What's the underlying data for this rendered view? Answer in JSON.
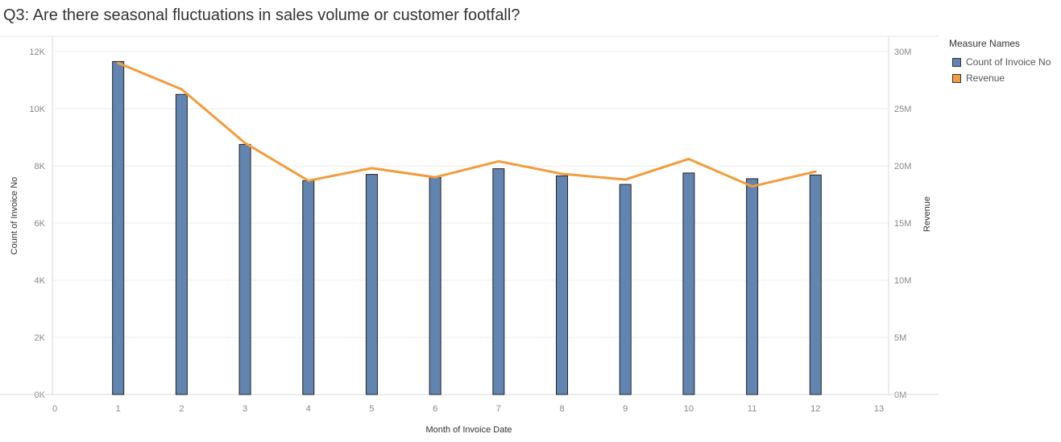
{
  "title": "Q3: Are there seasonal fluctuations in sales volume or customer footfall?",
  "legend": {
    "title": "Measure Names",
    "items": [
      {
        "label": "Count of Invoice No",
        "color": "#6185b0"
      },
      {
        "label": "Revenue",
        "color": "#f39c3b"
      }
    ]
  },
  "chart_data": {
    "type": "bar",
    "title": "Q3: Are there seasonal fluctuations in sales volume or customer footfall?",
    "xlabel": "Month of Invoice Date",
    "ylabel": "Count of Invoice No",
    "y2label": "Revenue",
    "x": [
      1,
      2,
      3,
      4,
      5,
      6,
      7,
      8,
      9,
      10,
      11,
      12
    ],
    "xlim": [
      0,
      13
    ],
    "xticks": [
      "0",
      "1",
      "2",
      "3",
      "4",
      "5",
      "6",
      "7",
      "8",
      "9",
      "10",
      "11",
      "12",
      "13"
    ],
    "ylim": [
      0,
      12000
    ],
    "yticks": [
      "0K",
      "2K",
      "4K",
      "6K",
      "8K",
      "10K",
      "12K"
    ],
    "y2lim": [
      0,
      30000000
    ],
    "y2ticks": [
      "0M",
      "5M",
      "10M",
      "15M",
      "20M",
      "25M",
      "30M"
    ],
    "grid": true,
    "legend_position": "top-right",
    "series": [
      {
        "name": "Count of Invoice No",
        "type": "bar",
        "axis": "left",
        "color": "#6185b0",
        "values": [
          11650,
          10500,
          8750,
          7480,
          7700,
          7600,
          7900,
          7650,
          7350,
          7750,
          7550,
          7680
        ]
      },
      {
        "name": "Revenue",
        "type": "line",
        "axis": "right",
        "color": "#f39c3b",
        "values": [
          29000000,
          26700000,
          22000000,
          18700000,
          19800000,
          19000000,
          20400000,
          19300000,
          18800000,
          20600000,
          18200000,
          19500000
        ]
      }
    ]
  }
}
